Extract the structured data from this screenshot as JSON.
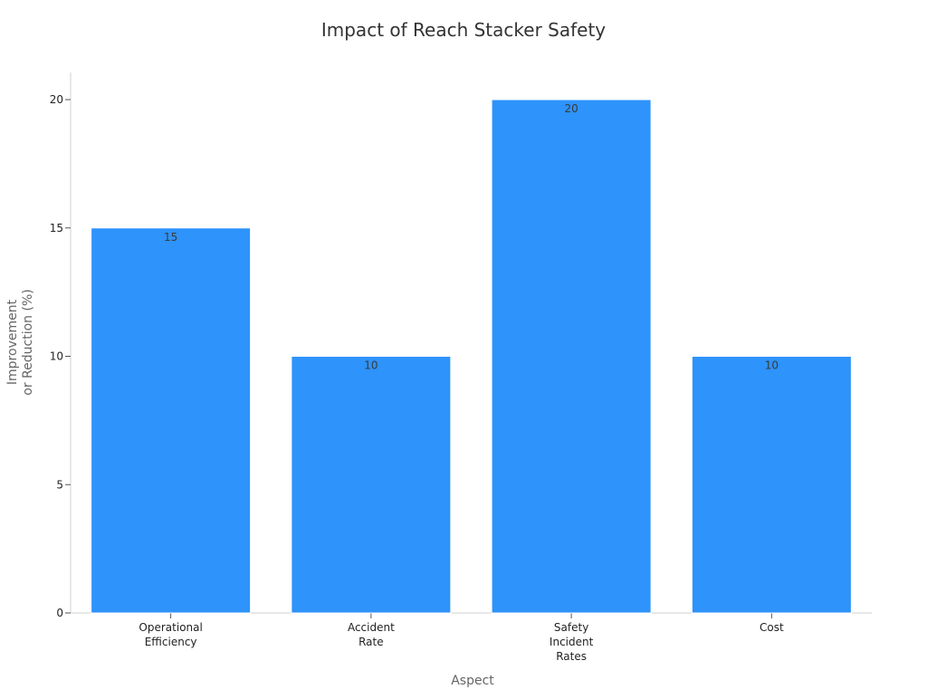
{
  "chart_data": {
    "type": "bar",
    "title": "Impact of Reach Stacker Safety",
    "xlabel": "Aspect",
    "ylabel": [
      "Improvement",
      "or Reduction (%)"
    ],
    "categories": [
      [
        "Operational",
        "Efficiency"
      ],
      [
        "Accident",
        "Rate"
      ],
      [
        "Safety",
        "Incident",
        "Rates"
      ],
      [
        "Cost"
      ]
    ],
    "values": [
      15,
      10,
      20,
      10
    ],
    "data_labels": [
      "15",
      "10",
      "20",
      "10"
    ],
    "ylim": [
      0,
      20
    ],
    "yticks": [
      0,
      5,
      10,
      15,
      20
    ],
    "ytick_labels": [
      "0",
      "5",
      "10",
      "15",
      "20"
    ],
    "bar_color": "#2E93FA",
    "grid": false,
    "legend": "none"
  }
}
